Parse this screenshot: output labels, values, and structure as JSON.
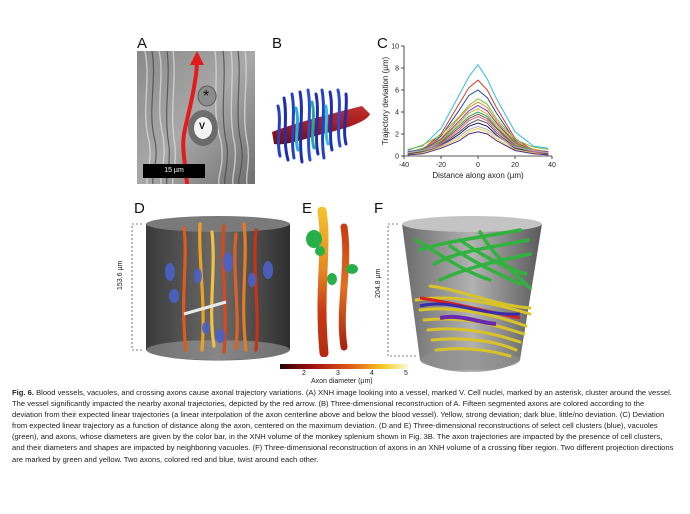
{
  "panels": {
    "a": {
      "label": "A",
      "marker_v": "V",
      "marker_star": "*",
      "scale": "15 µm"
    },
    "b": {
      "label": "B"
    },
    "c": {
      "label": "C"
    },
    "d": {
      "label": "D",
      "height_label": "153.6 µm"
    },
    "e": {
      "label": "E"
    },
    "f": {
      "label": "F",
      "height_label": "204.8 µm"
    }
  },
  "colorbar": {
    "title": "Axon diameter (µm)",
    "ticks": [
      "2",
      "3",
      "4",
      "5"
    ]
  },
  "chart_data": {
    "type": "line",
    "xlabel": "Distance along axon (µm)",
    "ylabel": "Trajectory deviation (µm)",
    "xlim": [
      -40,
      40
    ],
    "ylim": [
      0,
      10
    ],
    "xticks": [
      -40,
      -20,
      0,
      20,
      40
    ],
    "yticks": [
      0,
      2,
      4,
      6,
      8,
      10
    ],
    "x": [
      -38,
      -30,
      -20,
      -10,
      -5,
      0,
      5,
      10,
      20,
      30,
      38
    ],
    "series": [
      {
        "color": "#36b7e8",
        "values": [
          0.6,
          0.9,
          2.5,
          5.6,
          7.2,
          8.3,
          7.0,
          5.2,
          2.2,
          0.9,
          0.7
        ]
      },
      {
        "color": "#d43a2a",
        "values": [
          0.3,
          0.6,
          2.0,
          4.8,
          6.2,
          6.9,
          6.0,
          4.4,
          1.6,
          0.5,
          0.3
        ]
      },
      {
        "color": "#1f4e9c",
        "values": [
          0.2,
          0.5,
          1.8,
          4.2,
          5.5,
          6.0,
          5.3,
          3.9,
          1.4,
          0.4,
          0.2
        ]
      },
      {
        "color": "#7fbf3a",
        "values": [
          0.5,
          1.0,
          1.9,
          3.6,
          4.6,
          5.2,
          4.7,
          3.4,
          1.5,
          0.8,
          0.6
        ]
      },
      {
        "color": "#e08a2c",
        "values": [
          0.3,
          0.7,
          1.6,
          3.5,
          4.4,
          4.9,
          4.4,
          3.2,
          1.3,
          0.6,
          0.4
        ]
      },
      {
        "color": "#7b3fa6",
        "values": [
          0.4,
          0.6,
          1.5,
          3.2,
          4.1,
          4.6,
          4.1,
          3.0,
          1.2,
          0.5,
          0.4
        ]
      },
      {
        "color": "#c9b31e",
        "values": [
          0.2,
          0.5,
          1.4,
          3.0,
          3.9,
          4.3,
          3.8,
          2.8,
          1.1,
          0.5,
          0.3
        ]
      },
      {
        "color": "#2a9d6e",
        "values": [
          0.3,
          0.6,
          1.3,
          2.8,
          3.6,
          4.0,
          3.6,
          2.6,
          1.0,
          0.5,
          0.3
        ]
      },
      {
        "color": "#8c5a2b",
        "values": [
          0.1,
          0.4,
          1.2,
          2.6,
          3.4,
          3.8,
          3.4,
          2.5,
          0.9,
          0.4,
          0.2
        ]
      },
      {
        "color": "#e85aa5",
        "values": [
          0.2,
          0.5,
          1.1,
          2.4,
          3.2,
          3.6,
          3.2,
          2.3,
          0.9,
          0.4,
          0.2
        ]
      },
      {
        "color": "#555555",
        "values": [
          0.2,
          0.4,
          1.0,
          2.2,
          2.9,
          3.3,
          3.0,
          2.1,
          0.8,
          0.3,
          0.2
        ]
      },
      {
        "color": "#1a1a6e",
        "values": [
          0.1,
          0.3,
          0.9,
          2.0,
          2.7,
          3.0,
          2.7,
          1.9,
          0.7,
          0.3,
          0.1
        ]
      },
      {
        "color": "#b0b0b0",
        "values": [
          0.3,
          0.5,
          0.9,
          1.8,
          2.4,
          2.7,
          2.4,
          1.8,
          0.8,
          0.5,
          0.3
        ]
      },
      {
        "color": "#f2c94c",
        "values": [
          0.1,
          0.3,
          0.8,
          1.6,
          2.2,
          2.5,
          2.2,
          1.6,
          0.6,
          0.3,
          0.1
        ]
      },
      {
        "color": "#4a2a88",
        "values": [
          0.1,
          0.2,
          0.7,
          1.4,
          2.0,
          2.2,
          2.0,
          1.4,
          0.5,
          0.2,
          0.1
        ]
      }
    ]
  },
  "caption": {
    "figure": "Fig. 6.",
    "title": "Blood vessels, vacuoles, and crossing axons cause axonal trajectory variations.",
    "body": "(A) XNH image looking into a vessel, marked V. Cell nuclei, marked by an asterisk, cluster around the vessel. The vessel significantly impacted the nearby axonal trajectories, depicted by the red arrow. (B) Three-dimensional reconstruction of A. Fifteen segmented axons are colored according to the deviation from their expected linear trajectories (a linear interpolation of the axon centerline above and below the blood vessel). Yellow, strong deviation; dark blue, little/no deviation. (C) Deviation from expected linear trajectory as a function of distance along the axon, centered on the maximum deviation. (D and E) Three-dimensional reconstructions of select cell clusters (blue), vacuoles (green), and axons, whose diameters are given by the color bar, in the XNH volume of the monkey splenium shown in Fig. 3B. The axon trajectories are impacted by the presence of cell clusters, and their diameters and shapes are impacted by neighboring vacuoles. (F) Three-dimensional reconstruction of axons in an XNH volume of a crossing fiber region. Two different projection directions are marked by green and yellow. Two axons, colored red and blue, twist around each other."
  }
}
